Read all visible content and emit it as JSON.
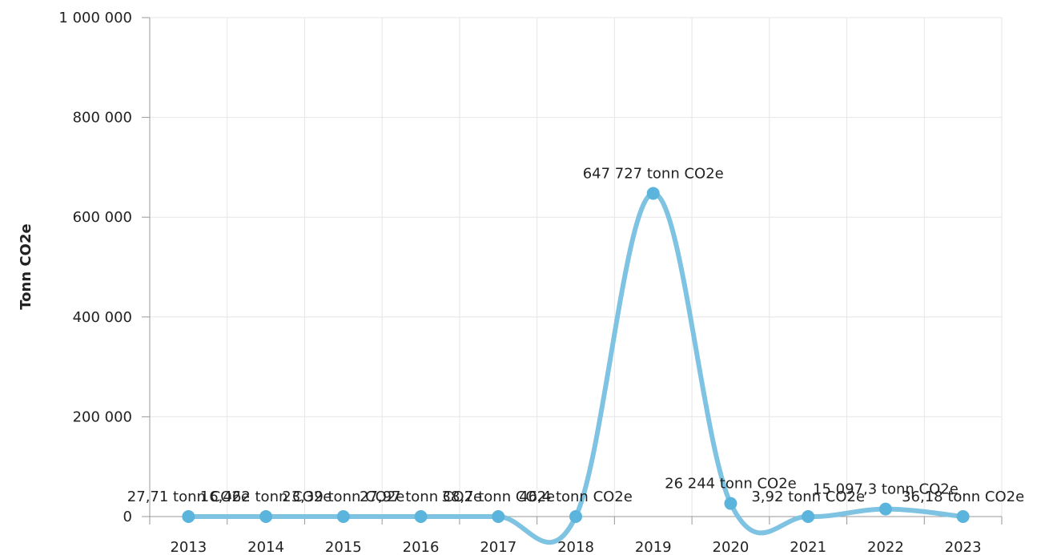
{
  "chart_data": {
    "type": "line",
    "title": "",
    "xlabel": "",
    "ylabel": "Tonn CO2e",
    "ylim": [
      0,
      1000000
    ],
    "yticks": [
      0,
      200000,
      400000,
      600000,
      800000,
      1000000
    ],
    "ytick_labels": [
      "0",
      "200 000",
      "400 000",
      "600 000",
      "800 000",
      "1 000 000"
    ],
    "categories": [
      "2013",
      "2014",
      "2015",
      "2016",
      "2017",
      "2018",
      "2019",
      "2020",
      "2021",
      "2022",
      "2023"
    ],
    "grid": true,
    "line_color": "#7ec3e2",
    "marker_color": "#5ab4dc",
    "series": [
      {
        "values": [
          27.71,
          16.462,
          23.39,
          27.97,
          38.7,
          46.4,
          647727,
          26244,
          3.92,
          15097.3,
          36.18
        ],
        "labels": [
          "27,71 tonn CO2e",
          "16,462 tonn CO2e",
          "23,39 tonn CO2e",
          "27,97 tonn CO2e",
          "38,7 tonn CO2e",
          "46,4 tonn CO2e",
          "647 727 tonn CO2e",
          "26 244 tonn CO2e",
          "3,92 tonn CO2e",
          "15 097,3 tonn CO2e",
          "36,18 tonn CO2e"
        ]
      }
    ]
  }
}
